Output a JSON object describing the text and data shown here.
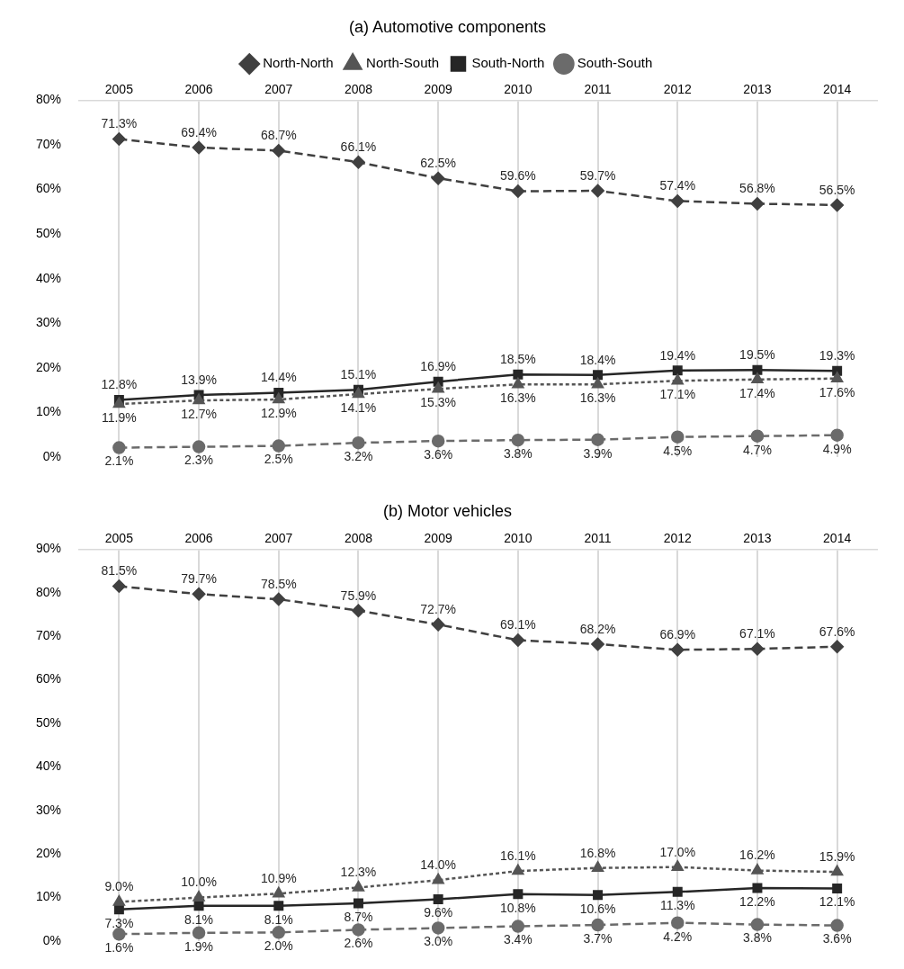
{
  "chart_data": [
    {
      "type": "line",
      "title": "(a) Automotive components",
      "categories": [
        "2005",
        "2006",
        "2007",
        "2008",
        "2009",
        "2010",
        "2011",
        "2012",
        "2013",
        "2014"
      ],
      "ylim": [
        0,
        80
      ],
      "yticks": [
        {
          "value": 0,
          "label": "0%"
        },
        {
          "value": 10,
          "label": "10%"
        },
        {
          "value": 20,
          "label": "20%"
        },
        {
          "value": 30,
          "label": "30%"
        },
        {
          "value": 40,
          "label": "40%"
        },
        {
          "value": 50,
          "label": "50%"
        },
        {
          "value": 60,
          "label": "60%"
        },
        {
          "value": 70,
          "label": "70%"
        },
        {
          "value": 80,
          "label": "80%"
        }
      ],
      "grid": "x",
      "legend": "top",
      "series": [
        {
          "name": "North-North",
          "color": "#404040",
          "marker": "diamond",
          "line_style": "dashed",
          "values": [
            71.3,
            69.4,
            68.7,
            66.1,
            62.5,
            59.6,
            59.7,
            57.4,
            56.8,
            56.5
          ],
          "value_labels": [
            "71.3%",
            "69.4%",
            "68.7%",
            "66.1%",
            "62.5%",
            "59.6%",
            "59.7%",
            "57.4%",
            "56.8%",
            "56.5%"
          ]
        },
        {
          "name": "North-South",
          "color": "#555555",
          "marker": "triangle",
          "line_style": "dotted",
          "values": [
            11.9,
            12.7,
            12.9,
            14.1,
            15.3,
            16.3,
            16.3,
            17.1,
            17.4,
            17.6
          ],
          "value_labels": [
            "11.9%",
            "12.7%",
            "12.9%",
            "14.1%",
            "15.3%",
            "16.3%",
            "16.3%",
            "17.1%",
            "17.4%",
            "17.6%"
          ]
        },
        {
          "name": "South-North",
          "color": "#262626",
          "marker": "square",
          "line_style": "solid",
          "values": [
            12.8,
            13.9,
            14.4,
            15.1,
            16.9,
            18.5,
            18.4,
            19.4,
            19.5,
            19.3
          ],
          "value_labels": [
            "12.8%",
            "13.9%",
            "14.4%",
            "15.1%",
            "16.9%",
            "18.5%",
            "18.4%",
            "19.4%",
            "19.5%",
            "19.3%"
          ]
        },
        {
          "name": "South-South",
          "color": "#6b6b6b",
          "marker": "circle",
          "line_style": "dashed",
          "values": [
            2.1,
            2.3,
            2.5,
            3.2,
            3.6,
            3.8,
            3.9,
            4.5,
            4.7,
            4.9
          ],
          "value_labels": [
            "2.1%",
            "2.3%",
            "2.5%",
            "3.2%",
            "3.6%",
            "3.8%",
            "3.9%",
            "4.5%",
            "4.7%",
            "4.9%"
          ]
        }
      ]
    },
    {
      "type": "line",
      "title": "(b) Motor vehicles",
      "categories": [
        "2005",
        "2006",
        "2007",
        "2008",
        "2009",
        "2010",
        "2011",
        "2012",
        "2013",
        "2014"
      ],
      "ylim": [
        0,
        90
      ],
      "yticks": [
        {
          "value": 0,
          "label": "0%"
        },
        {
          "value": 10,
          "label": "10%"
        },
        {
          "value": 20,
          "label": "20%"
        },
        {
          "value": 30,
          "label": "30%"
        },
        {
          "value": 40,
          "label": "40%"
        },
        {
          "value": 50,
          "label": "50%"
        },
        {
          "value": 60,
          "label": "60%"
        },
        {
          "value": 70,
          "label": "70%"
        },
        {
          "value": 80,
          "label": "80%"
        },
        {
          "value": 90,
          "label": "90%"
        }
      ],
      "grid": "x",
      "series": [
        {
          "color": "#404040",
          "marker": "diamond",
          "line_style": "dashed",
          "values": [
            81.5,
            79.7,
            78.5,
            75.9,
            72.7,
            69.1,
            68.2,
            66.9,
            67.1,
            67.6
          ],
          "value_labels": [
            "81.5%",
            "79.7%",
            "78.5%",
            "75.9%",
            "72.7%",
            "69.1%",
            "68.2%",
            "66.9%",
            "67.1%",
            "67.6%"
          ]
        },
        {
          "color": "#555555",
          "marker": "triangle",
          "line_style": "dotted",
          "values": [
            9.0,
            10.0,
            10.9,
            12.3,
            14.0,
            16.1,
            16.8,
            17.0,
            16.2,
            15.9
          ],
          "value_labels": [
            "9.0%",
            "10.0%",
            "10.9%",
            "12.3%",
            "14.0%",
            "16.1%",
            "16.8%",
            "17.0%",
            "16.2%",
            "15.9%"
          ]
        },
        {
          "color": "#262626",
          "marker": "square",
          "line_style": "solid",
          "values": [
            7.3,
            8.1,
            8.1,
            8.7,
            9.6,
            10.8,
            10.6,
            11.3,
            12.2,
            12.1
          ],
          "value_labels": [
            "7.3%",
            "8.1%",
            "8.1%",
            "8.7%",
            "9.6%",
            "10.8%",
            "10.6%",
            "11.3%",
            "12.2%",
            "12.1%"
          ]
        },
        {
          "color": "#6b6b6b",
          "marker": "circle",
          "line_style": "dashed",
          "values": [
            1.6,
            1.9,
            2.0,
            2.6,
            3.0,
            3.4,
            3.7,
            4.2,
            3.8,
            3.6
          ],
          "value_labels": [
            "1.6%",
            "1.9%",
            "2.0%",
            "2.6%",
            "3.0%",
            "3.4%",
            "3.7%",
            "4.2%",
            "3.8%",
            "3.6%"
          ]
        }
      ]
    }
  ]
}
